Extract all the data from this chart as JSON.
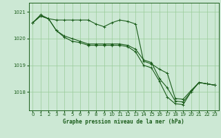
{
  "title": "Graphe pression niveau de la mer (hPa)",
  "bg_color": "#cce8d4",
  "grid_color": "#99cc99",
  "line_color": "#1a5c1a",
  "xlim": [
    -0.5,
    23.5
  ],
  "ylim": [
    1017.3,
    1021.35
  ],
  "yticks": [
    1018,
    1019,
    1020,
    1021
  ],
  "xticks": [
    0,
    1,
    2,
    3,
    4,
    5,
    6,
    7,
    8,
    9,
    10,
    11,
    12,
    13,
    14,
    15,
    16,
    17,
    18,
    19,
    20,
    21,
    22,
    23
  ],
  "series": [
    {
      "x": [
        0,
        1,
        2,
        3,
        4,
        5,
        6,
        7,
        8,
        9,
        10,
        11,
        12,
        13,
        14,
        15,
        16,
        17,
        18,
        19,
        20,
        21,
        22,
        23
      ],
      "y": [
        1020.6,
        1020.9,
        1020.75,
        1020.7,
        1020.7,
        1020.7,
        1020.7,
        1020.7,
        1020.55,
        1020.45,
        1020.6,
        1020.7,
        1020.65,
        1020.55,
        1019.15,
        1019.05,
        1018.85,
        1018.7,
        1017.75,
        1017.72,
        1018.05,
        1018.35,
        1018.3,
        1018.25
      ]
    },
    {
      "x": [
        0,
        1,
        2,
        3,
        4,
        5,
        6,
        7,
        8,
        9,
        10,
        11,
        12,
        13,
        14,
        15,
        16,
        17,
        18,
        19,
        20,
        21,
        22,
        23
      ],
      "y": [
        1020.6,
        1020.85,
        1020.75,
        1020.3,
        1020.1,
        1020.0,
        1019.9,
        1019.8,
        1019.8,
        1019.8,
        1019.8,
        1019.8,
        1019.75,
        1019.6,
        1019.2,
        1019.1,
        1018.5,
        1018.15,
        1017.65,
        1017.62,
        1018.0,
        1018.35,
        1018.3,
        1018.25
      ]
    },
    {
      "x": [
        0,
        1,
        2,
        3,
        4,
        5,
        6,
        7,
        8,
        9,
        10,
        11,
        12,
        13,
        14,
        15,
        16,
        17,
        18,
        19,
        20,
        21,
        22,
        23
      ],
      "y": [
        1020.6,
        1020.85,
        1020.75,
        1020.3,
        1020.05,
        1019.9,
        1019.85,
        1019.75,
        1019.75,
        1019.75,
        1019.75,
        1019.75,
        1019.7,
        1019.5,
        1019.0,
        1018.9,
        1018.4,
        1017.8,
        1017.55,
        1017.52,
        1018.0,
        1018.35,
        1018.3,
        1018.25
      ]
    }
  ]
}
